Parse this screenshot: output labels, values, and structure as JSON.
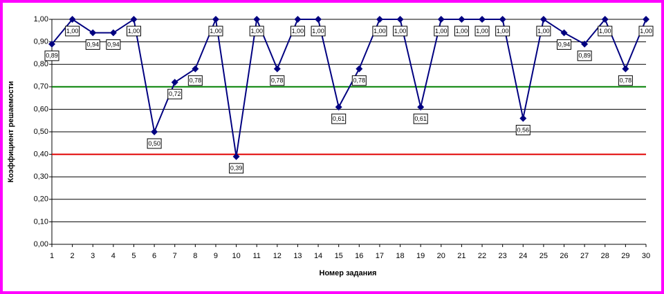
{
  "chart_data": {
    "type": "line",
    "x_label": "Номер задания",
    "y_label": "Коэффициент решаемости",
    "x": [
      1,
      2,
      3,
      4,
      5,
      6,
      7,
      8,
      9,
      10,
      11,
      12,
      13,
      14,
      15,
      16,
      17,
      18,
      19,
      20,
      21,
      22,
      23,
      24,
      25,
      26,
      27,
      28,
      29,
      30
    ],
    "xlim": [
      1,
      30
    ],
    "xticks": [
      1,
      2,
      3,
      4,
      5,
      6,
      7,
      8,
      9,
      10,
      11,
      12,
      13,
      14,
      15,
      16,
      17,
      18,
      19,
      20,
      21,
      22,
      23,
      24,
      25,
      26,
      27,
      28,
      29,
      30
    ],
    "ylim": [
      0,
      1
    ],
    "yticks": [
      {
        "value": 0,
        "label": "0,00"
      },
      {
        "value": 0.1,
        "label": "0,10"
      },
      {
        "value": 0.2,
        "label": "0,20"
      },
      {
        "value": 0.3,
        "label": "0,30"
      },
      {
        "value": 0.4,
        "label": "0,40"
      },
      {
        "value": 0.5,
        "label": "0,50"
      },
      {
        "value": 0.6,
        "label": "0,60"
      },
      {
        "value": 0.7,
        "label": "0,70"
      },
      {
        "value": 0.8,
        "label": "0,80"
      },
      {
        "value": 0.9,
        "label": "0,90"
      },
      {
        "value": 1,
        "label": "1,00"
      }
    ],
    "grid": true,
    "color": "#000080",
    "values": [
      0.89,
      1.0,
      0.94,
      0.94,
      1.0,
      0.5,
      0.72,
      0.78,
      1.0,
      0.39,
      1.0,
      0.78,
      1.0,
      1.0,
      0.61,
      0.78,
      1.0,
      1.0,
      0.61,
      1.0,
      1.0,
      1.0,
      1.0,
      0.56,
      1.0,
      0.94,
      0.89,
      1.0,
      0.78,
      1.0
    ],
    "value_labels": [
      "0,89",
      "1,00",
      "0,94",
      "0,94",
      "1,00",
      "0,50",
      "0,72",
      "0,78",
      "1,00",
      "0,39",
      "1,00",
      "0,78",
      "1,00",
      "1,00",
      "0,61",
      "0,78",
      "1,00",
      "1,00",
      "0,61",
      "1,00",
      "1,00",
      "1,00",
      "1,00",
      "0,56",
      "1,00",
      "0,94",
      "0,89",
      "1,00",
      "0,78",
      "1,00"
    ],
    "reference_lines": [
      {
        "value": 0.7,
        "color": "#008000"
      },
      {
        "value": 0.4,
        "color": "#e00000"
      }
    ]
  }
}
